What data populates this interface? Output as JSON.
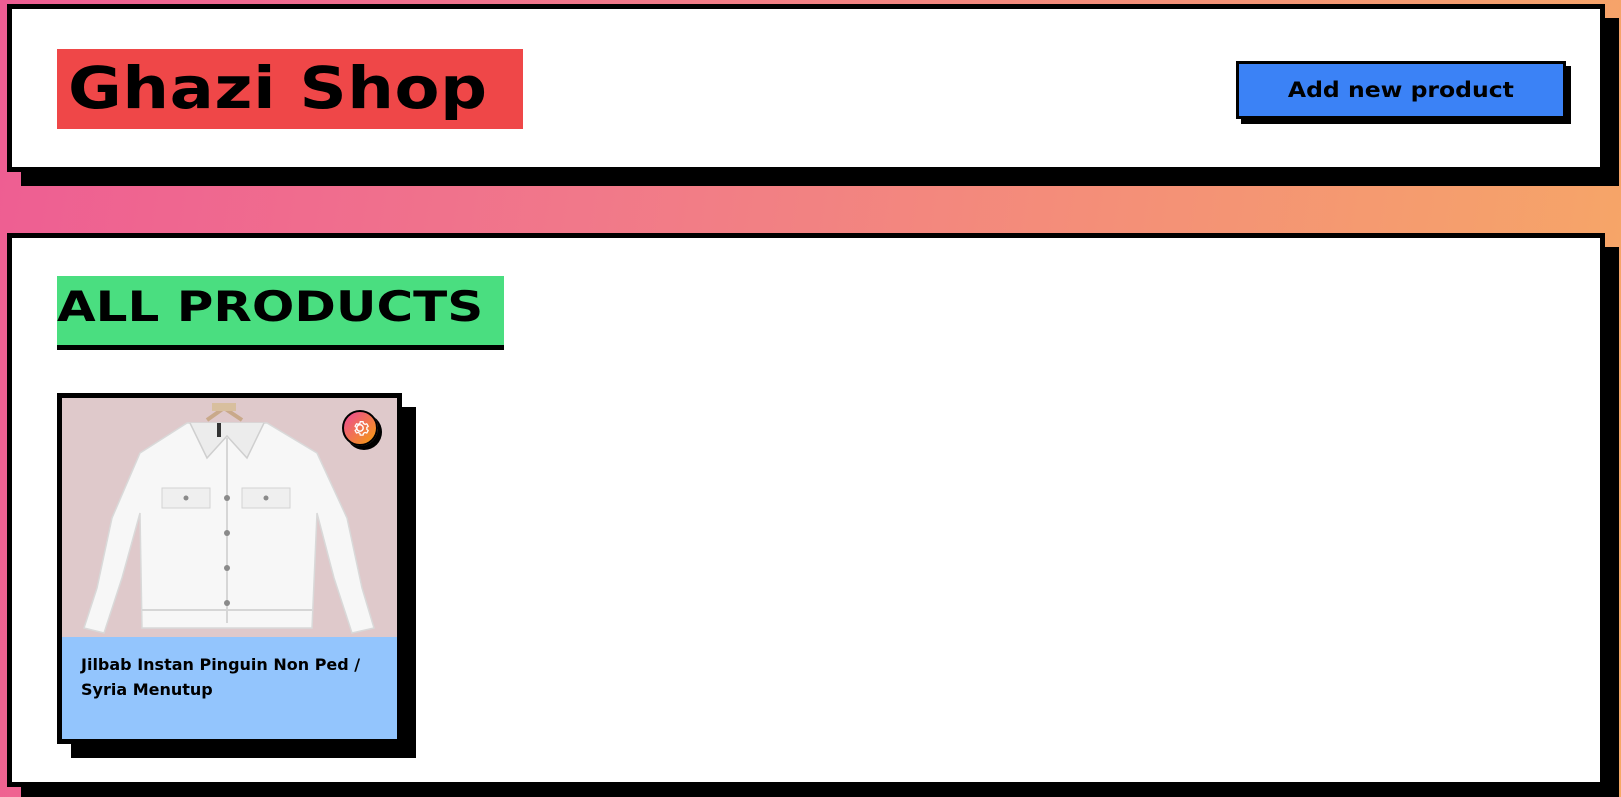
{
  "header": {
    "shop_name": "Ghazi Shop",
    "add_button_label": "Add new product"
  },
  "main": {
    "section_title": "ALL PRODUCTS",
    "products": [
      {
        "name": "Jilbab Instan Pinguin Non Ped / Syria Menutup",
        "image_icon": "white-denim-jacket-image",
        "action_icon": "gear-icon"
      }
    ]
  },
  "colors": {
    "title_bg": "#ef4748",
    "button_bg": "#3b82f6",
    "section_title_bg": "#4ade80",
    "card_caption_bg": "#93c5fd",
    "image_bg": "#dfc9cb"
  }
}
